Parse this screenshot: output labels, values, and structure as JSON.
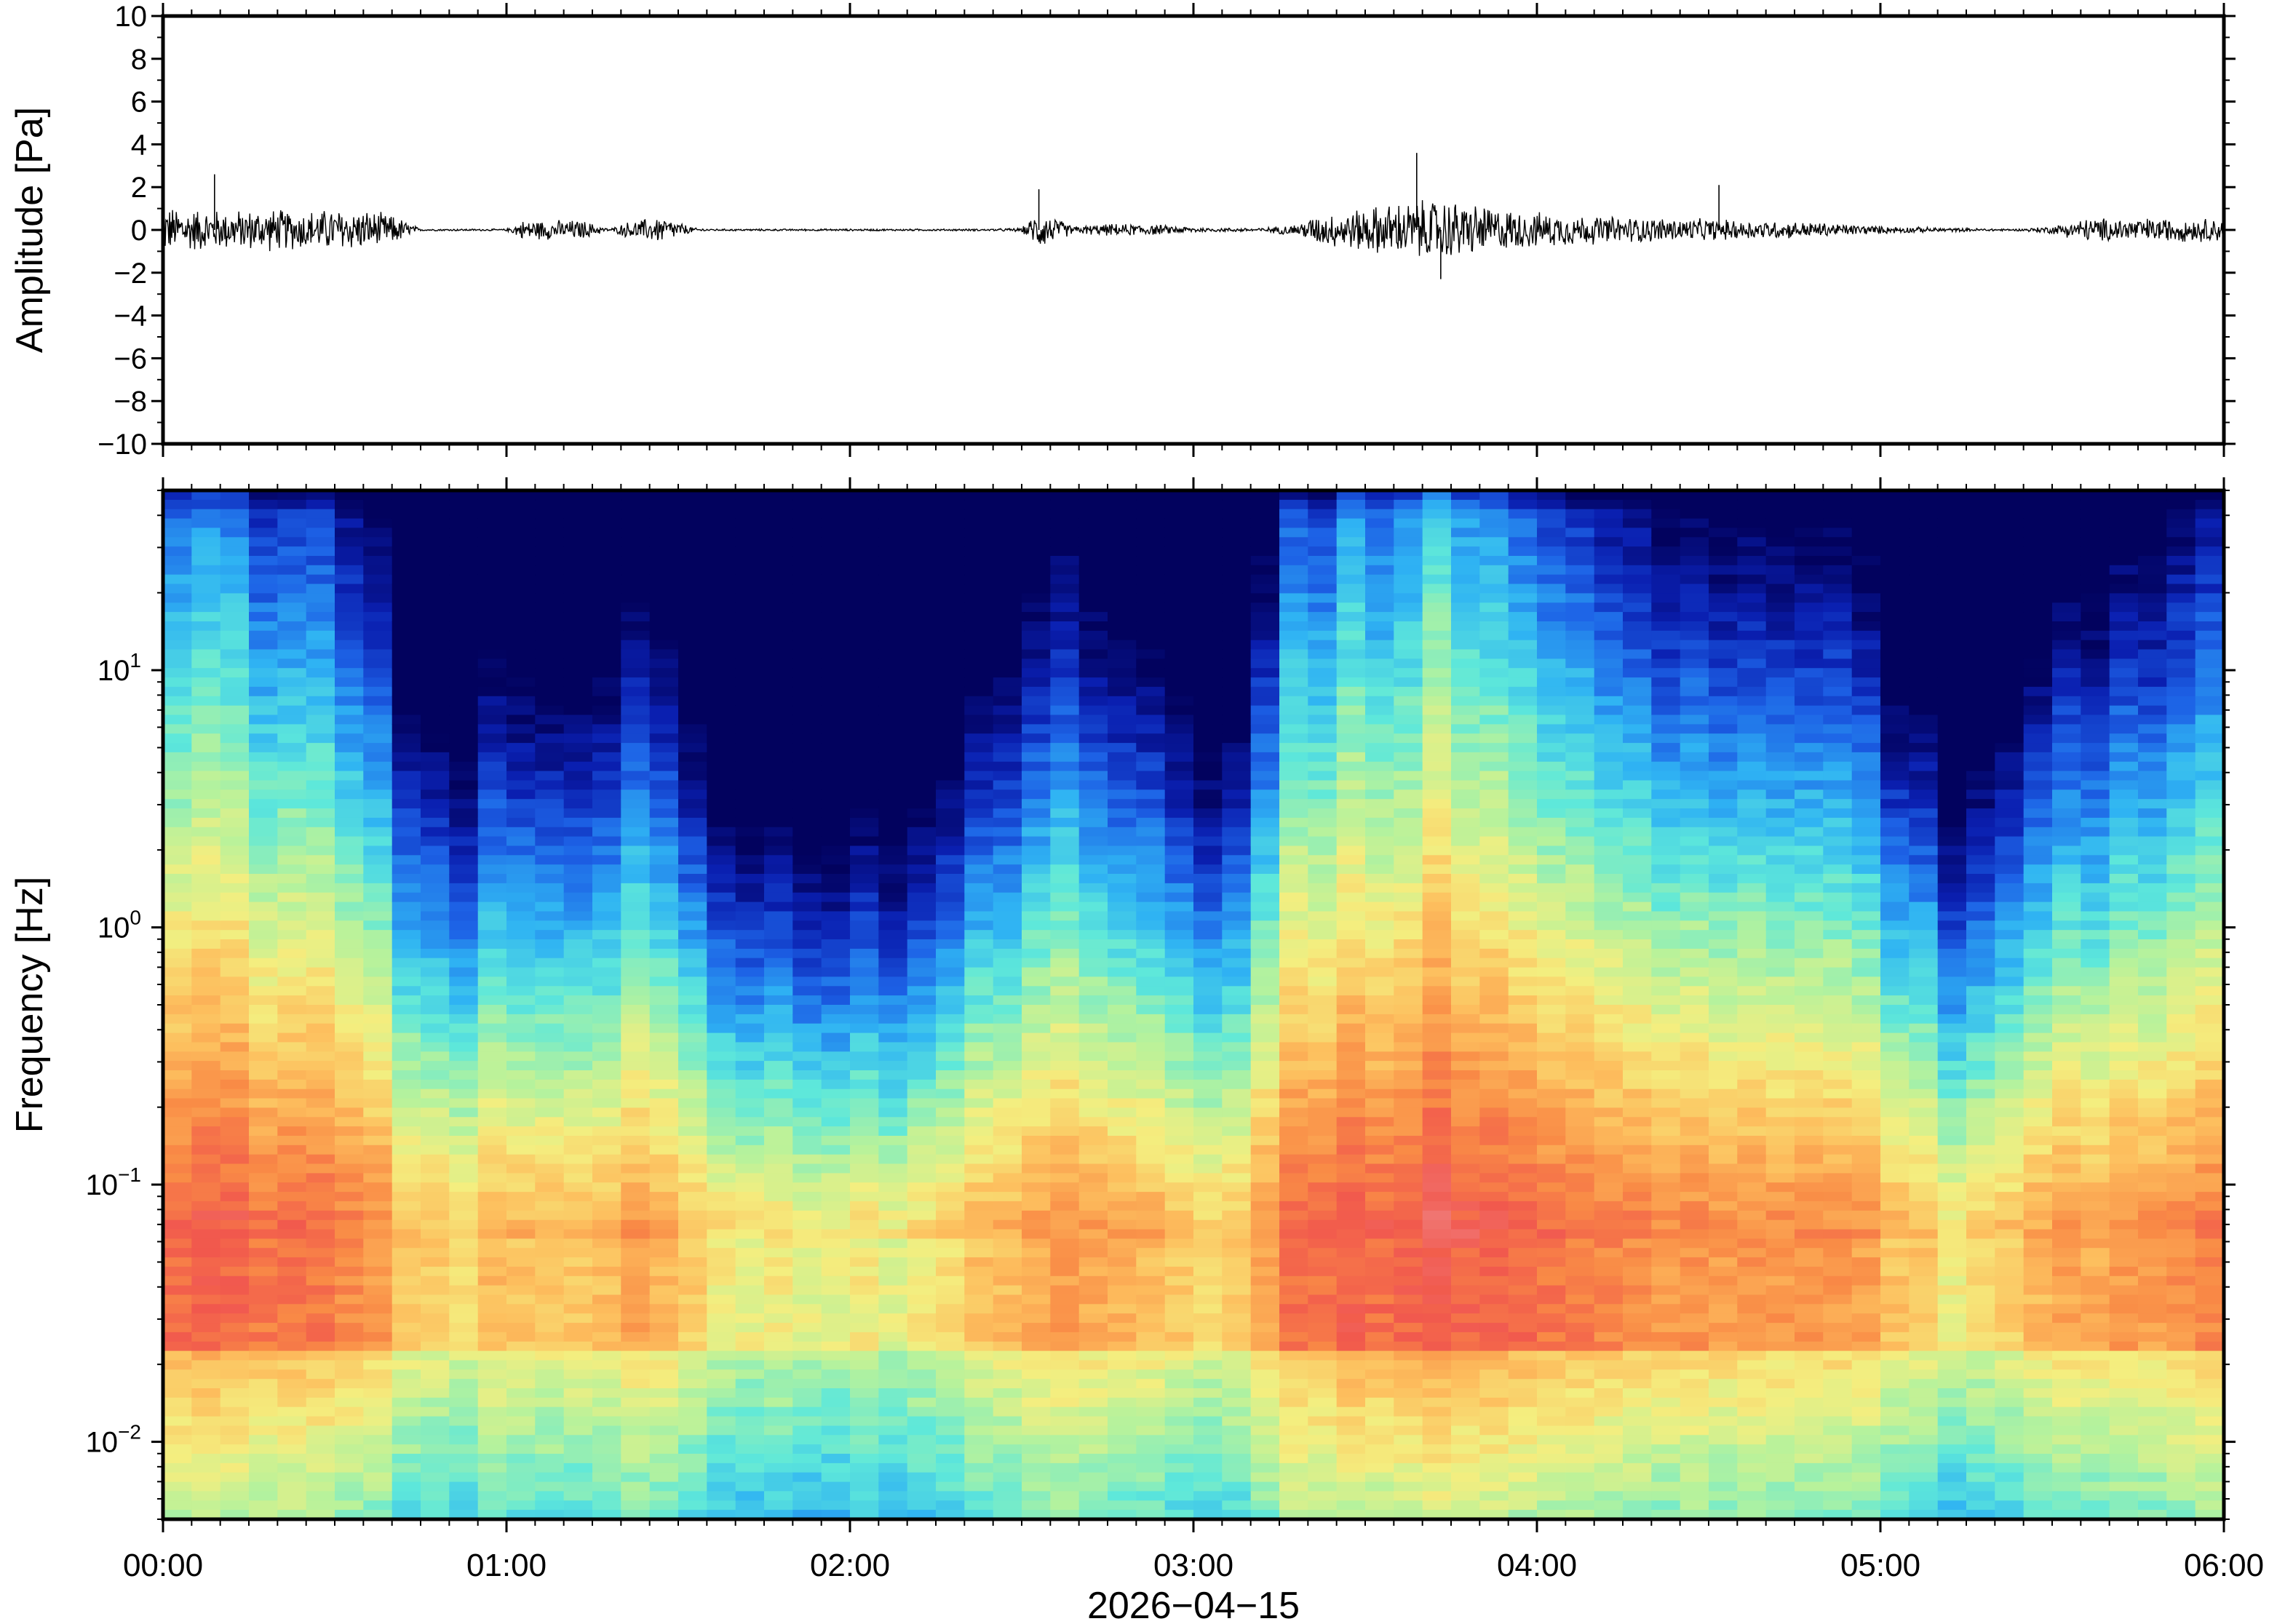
{
  "chart_data": [
    {
      "type": "line",
      "panel": "waveform",
      "ylabel": "Amplitude [Pa]",
      "ylim": [
        -10,
        10
      ],
      "yticks": [
        10,
        8,
        6,
        4,
        2,
        0,
        -2,
        -4,
        -6,
        -8,
        -10
      ],
      "ytick_labels": [
        "10",
        "8",
        "6",
        "4",
        "2",
        "0",
        "−2",
        "−4",
        "−6",
        "−8",
        "−10"
      ],
      "xlim_hours": [
        0,
        6
      ],
      "line_color": "#000000",
      "envelope": {
        "x_hours": [
          0.0,
          0.1,
          0.2,
          0.3,
          0.4,
          0.5,
          0.6,
          0.68,
          0.75,
          1.0,
          1.05,
          1.15,
          1.22,
          1.3,
          1.35,
          1.45,
          1.5,
          1.55,
          1.6,
          2.0,
          2.4,
          2.5,
          2.55,
          2.6,
          2.65,
          2.75,
          2.85,
          2.95,
          3.05,
          3.2,
          3.3,
          3.35,
          3.45,
          3.55,
          3.65,
          3.72,
          3.8,
          3.9,
          4.0,
          4.2,
          4.4,
          4.6,
          4.8,
          5.0,
          5.2,
          5.4,
          5.5,
          5.6,
          5.8,
          6.0
        ],
        "max_abs_pa": [
          1.2,
          1.1,
          1.0,
          1.1,
          1.0,
          1.1,
          1.0,
          0.7,
          0.05,
          0.05,
          0.5,
          0.5,
          0.5,
          0.05,
          0.4,
          0.7,
          0.4,
          0.1,
          0.05,
          0.05,
          0.05,
          0.1,
          1.0,
          0.6,
          0.2,
          0.3,
          0.3,
          0.2,
          0.1,
          0.1,
          0.3,
          0.7,
          1.0,
          1.3,
          1.5,
          1.6,
          1.4,
          1.1,
          0.9,
          0.7,
          0.6,
          0.5,
          0.4,
          0.2,
          0.1,
          0.05,
          0.2,
          0.6,
          0.6,
          0.6
        ]
      },
      "peaks": [
        {
          "x_hours": 0.15,
          "y_pa": 2.6
        },
        {
          "x_hours": 2.55,
          "y_pa": 1.9
        },
        {
          "x_hours": 3.65,
          "y_pa": 3.6
        },
        {
          "x_hours": 3.72,
          "y_pa": -2.3
        },
        {
          "x_hours": 4.53,
          "y_pa": 2.1
        }
      ]
    },
    {
      "type": "heatmap",
      "panel": "spectrogram",
      "ylabel": "Frequency [Hz]",
      "y_scale": "log",
      "ylim_hz": [
        0.005,
        50
      ],
      "yticks_hz": [
        10,
        1,
        0.1,
        0.01
      ],
      "ytick_labels": [
        {
          "base": "10",
          "exp": "1"
        },
        {
          "base": "10",
          "exp": "0"
        },
        {
          "base": "10",
          "exp": "−1"
        },
        {
          "base": "10",
          "exp": "−2"
        }
      ],
      "xlim_hours": [
        0,
        6
      ],
      "colormap": [
        "#02025e",
        "#0a1fb0",
        "#1d62e6",
        "#2fb3f3",
        "#5ee8da",
        "#b6f29c",
        "#f4ee7f",
        "#fdbf5e",
        "#f98b46",
        "#f1584d",
        "#f08787"
      ],
      "time_bins_hours": [
        0.0,
        0.5,
        0.7,
        0.85,
        0.95,
        1.1,
        1.2,
        1.3,
        1.45,
        1.6,
        1.8,
        1.9,
        2.0,
        2.1,
        2.3,
        2.4,
        2.5,
        2.6,
        2.75,
        2.9,
        3.0,
        3.1,
        3.3,
        3.5,
        3.7,
        3.9,
        4.1,
        4.3,
        4.5,
        4.7,
        4.9,
        5.1,
        5.2,
        5.35,
        5.5,
        5.7,
        6.0
      ],
      "activity_index": [
        0.85,
        0.8,
        0.5,
        0.35,
        0.45,
        0.45,
        0.4,
        0.5,
        0.55,
        0.25,
        0.2,
        0.15,
        0.25,
        0.2,
        0.35,
        0.5,
        0.5,
        0.65,
        0.5,
        0.45,
        0.4,
        0.3,
        0.8,
        0.9,
        0.95,
        0.85,
        0.75,
        0.7,
        0.65,
        0.6,
        0.6,
        0.45,
        0.25,
        0.35,
        0.55,
        0.65,
        0.7
      ]
    }
  ],
  "x_axis": {
    "tick_labels": [
      "00:00",
      "01:00",
      "02:00",
      "03:00",
      "04:00",
      "05:00",
      "06:00"
    ],
    "date_label": "2026−04−15"
  }
}
